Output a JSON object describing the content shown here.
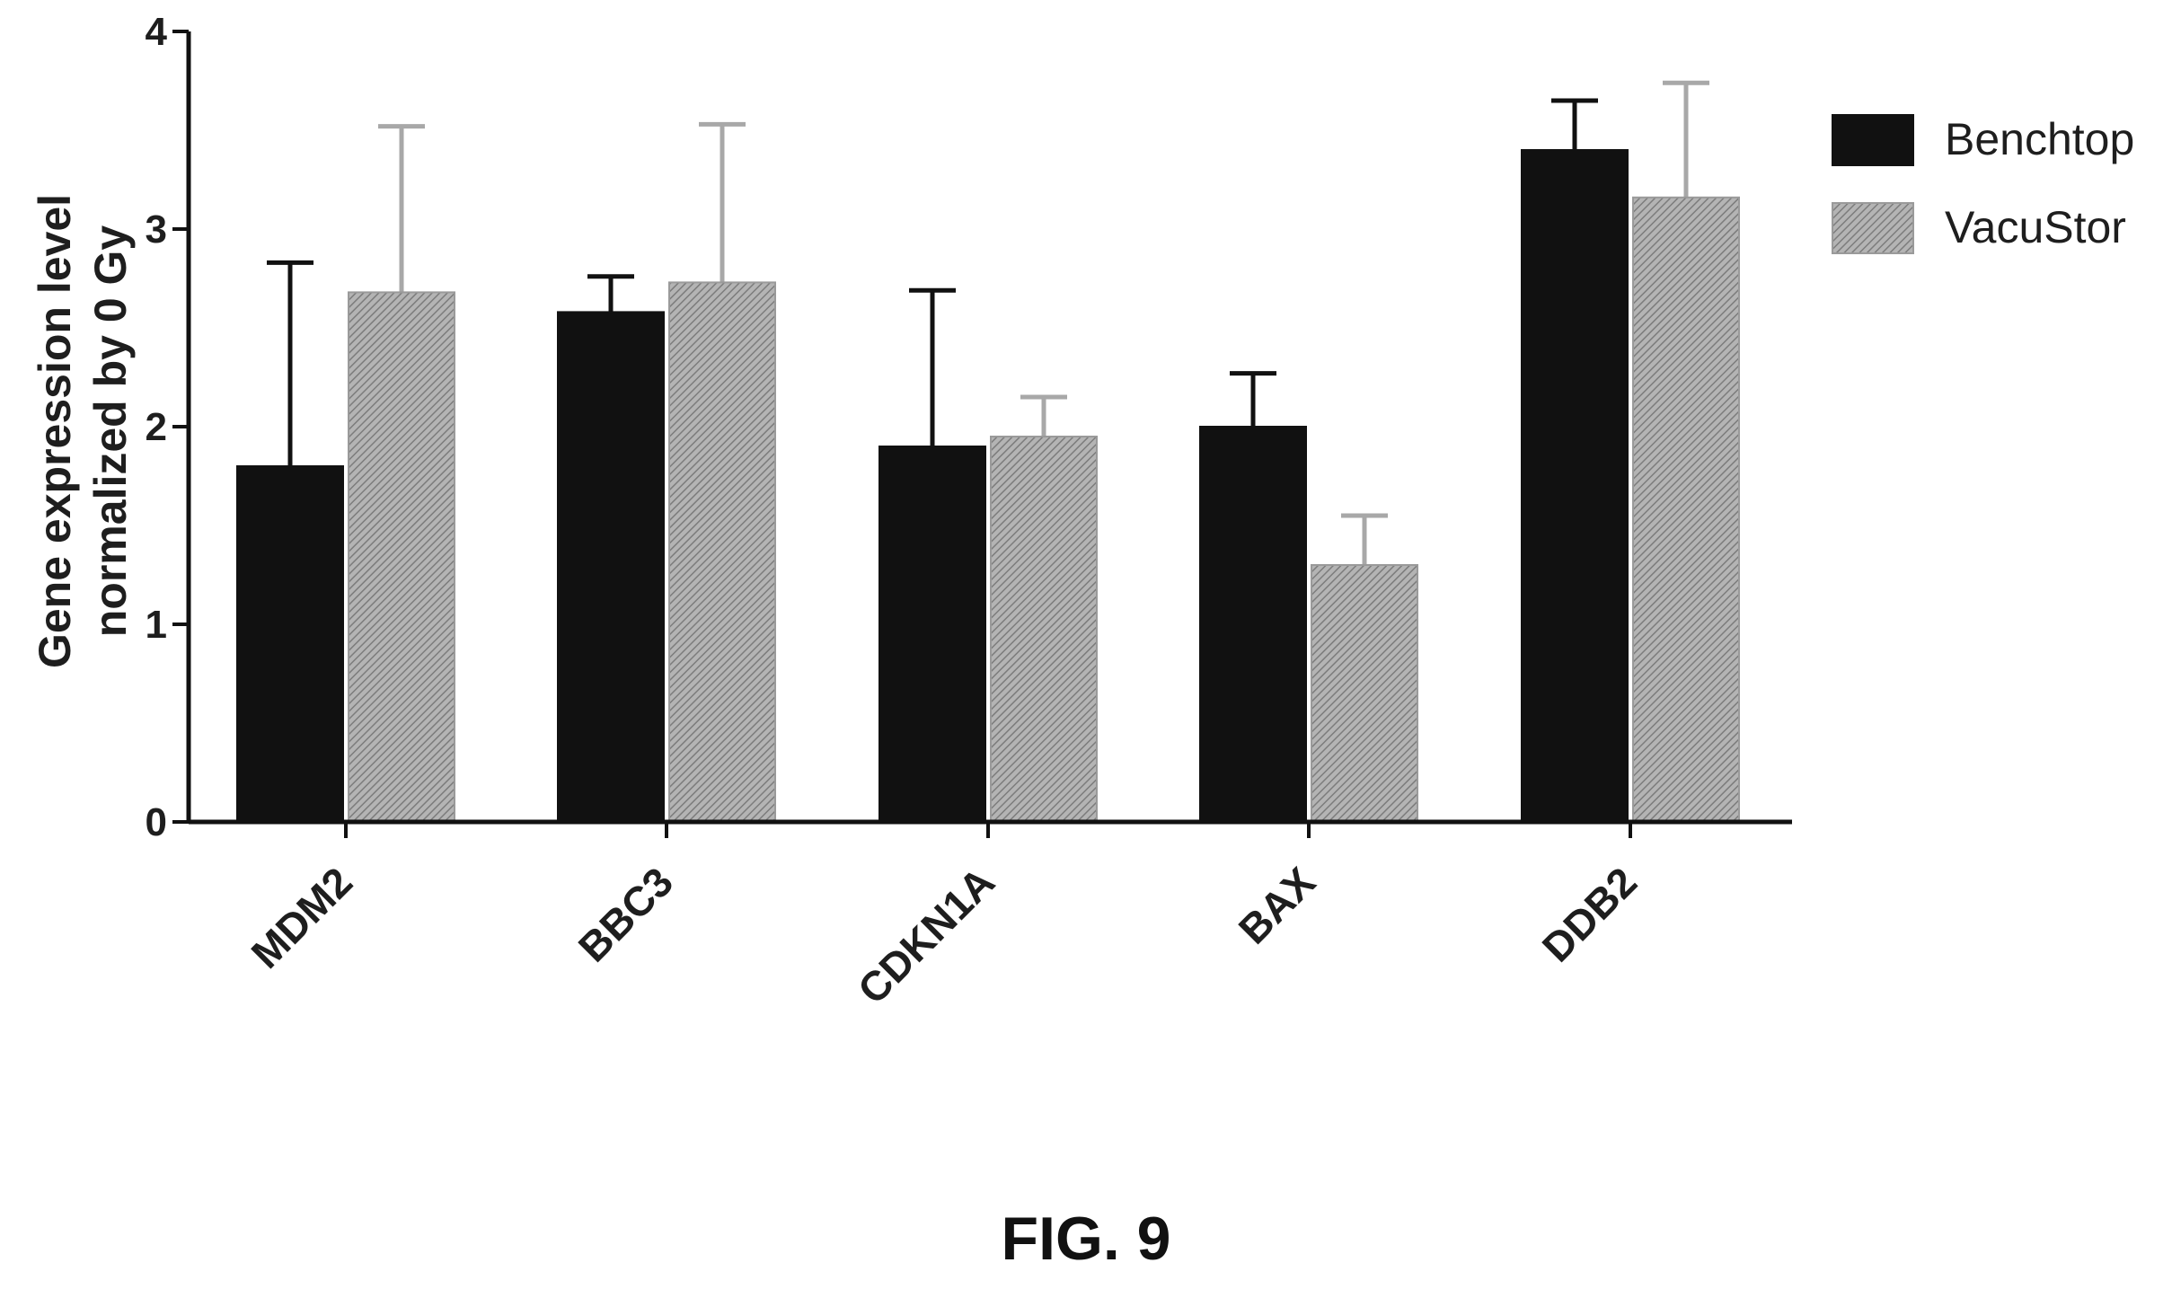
{
  "chart_data": {
    "type": "bar",
    "title": "",
    "ylabel": "Gene expression level normalized by 0 Gy",
    "ylabel_lines": [
      "Gene expression level",
      "normalized by 0 Gy"
    ],
    "xlabel": "",
    "ylim": [
      0,
      4
    ],
    "yticks": [
      "0",
      "1",
      "2",
      "3",
      "4"
    ],
    "categories": [
      "MDM2",
      "BBC3",
      "CDKN1A",
      "BAX",
      "DDB2"
    ],
    "series": [
      {
        "name": "Benchtop",
        "values": [
          1.8,
          2.58,
          1.9,
          2.0,
          3.4
        ],
        "error": [
          1.03,
          0.18,
          0.79,
          0.27,
          0.25
        ],
        "color": "#111111",
        "pattern": "solid"
      },
      {
        "name": "VacuStor",
        "values": [
          2.68,
          2.73,
          1.95,
          1.3,
          3.16
        ],
        "error": [
          0.84,
          0.8,
          0.2,
          0.25,
          0.58
        ],
        "color": "#9a9a9a",
        "pattern": "hatched"
      }
    ],
    "legend_position": "top-right",
    "grid": false
  },
  "caption": "FIG. 9"
}
